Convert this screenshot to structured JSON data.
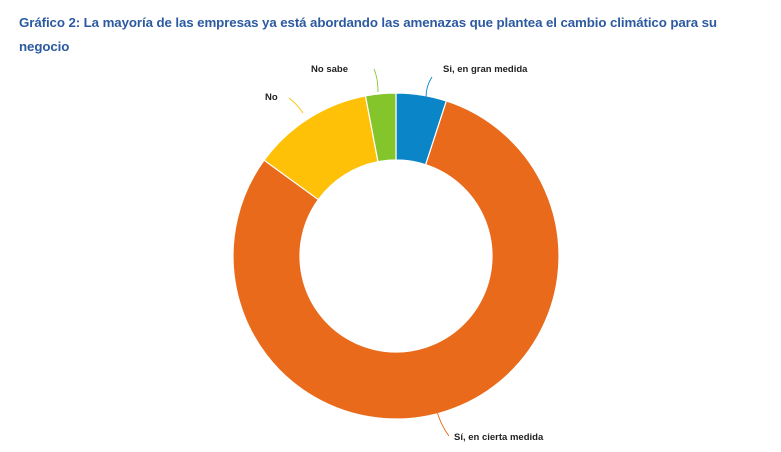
{
  "chart_data": {
    "type": "pie",
    "variant": "donut",
    "title": "Gráfico 2: La mayoría de las empresas ya está abordando las amenazas que plantea el cambio climático para su negocio",
    "categories": [
      "Si, en gran medida",
      "Sí, en cierta medida",
      "No",
      "No sabe"
    ],
    "values": [
      5,
      80,
      12,
      3
    ],
    "unit": "%",
    "colors": [
      "#0a86c8",
      "#e96a1b",
      "#fec107",
      "#83c52a"
    ],
    "legend": "none",
    "labels_position": "outside-with-leader-lines"
  }
}
